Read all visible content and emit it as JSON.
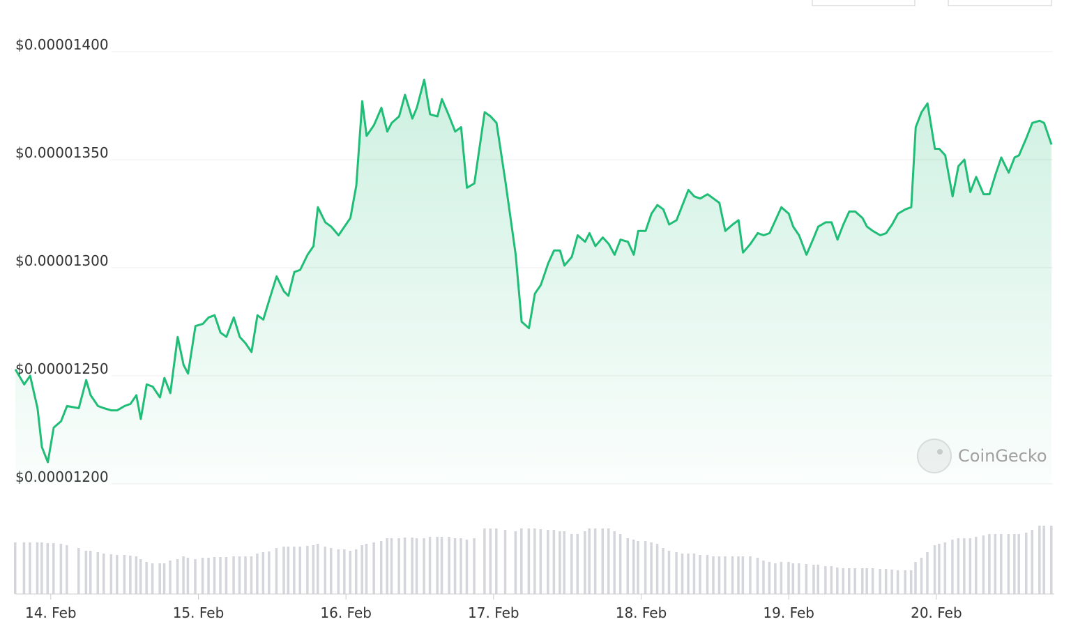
{
  "chart_data": {
    "type": "line",
    "color": "#20bd77",
    "volume_color": "#d4d6dc",
    "grid": true,
    "watermark": "CoinGecko",
    "x": [
      13.76,
      13.82,
      13.86,
      13.91,
      13.94,
      13.98,
      14.02,
      14.07,
      14.11,
      14.19,
      14.24,
      14.27,
      14.32,
      14.36,
      14.41,
      14.45,
      14.5,
      14.54,
      14.58,
      14.61,
      14.65,
      14.69,
      14.74,
      14.77,
      14.81,
      14.86,
      14.9,
      14.93,
      14.98,
      15.03,
      15.07,
      15.11,
      15.15,
      15.19,
      15.24,
      15.28,
      15.32,
      15.36,
      15.4,
      15.44,
      15.48,
      15.53,
      15.58,
      15.61,
      15.65,
      15.69,
      15.74,
      15.78,
      15.81,
      15.86,
      15.9,
      15.95,
      15.99,
      16.03,
      16.07,
      16.11,
      16.14,
      16.19,
      16.24,
      16.28,
      16.31,
      16.36,
      16.4,
      16.45,
      16.48,
      16.53,
      16.57,
      16.62,
      16.65,
      16.7,
      16.74,
      16.78,
      16.82,
      16.87,
      16.94,
      16.98,
      17.02,
      17.08,
      17.15,
      17.19,
      17.24,
      17.28,
      17.32,
      17.37,
      17.41,
      17.45,
      17.48,
      17.53,
      17.57,
      17.62,
      17.65,
      17.69,
      17.74,
      17.78,
      17.82,
      17.86,
      17.91,
      17.95,
      17.98,
      18.03,
      18.07,
      18.11,
      18.15,
      18.19,
      18.24,
      18.28,
      18.32,
      18.36,
      18.4,
      18.45,
      18.49,
      18.53,
      18.57,
      18.62,
      18.66,
      18.69,
      18.74,
      18.79,
      18.83,
      18.87,
      18.91,
      18.95,
      19,
      19.03,
      19.07,
      19.12,
      19.17,
      19.2,
      19.25,
      19.29,
      19.33,
      19.37,
      19.41,
      19.45,
      19.5,
      19.53,
      19.57,
      19.62,
      19.66,
      19.7,
      19.74,
      19.79,
      19.83,
      19.86,
      19.9,
      19.94,
      19.99,
      20.02,
      20.06,
      20.11,
      20.15,
      20.19,
      20.23,
      20.27,
      20.32,
      20.36,
      20.4,
      20.44,
      20.49,
      20.53,
      20.56,
      20.61,
      20.65,
      20.7,
      20.73,
      20.78
    ],
    "values": [
      1.253e-05,
      1.246e-05,
      1.25e-05,
      1.235e-05,
      1.217e-05,
      1.21e-05,
      1.226e-05,
      1.229e-05,
      1.236e-05,
      1.235e-05,
      1.248e-05,
      1.241e-05,
      1.236e-05,
      1.235e-05,
      1.234e-05,
      1.234e-05,
      1.236e-05,
      1.237e-05,
      1.241e-05,
      1.23e-05,
      1.246e-05,
      1.245e-05,
      1.24e-05,
      1.249e-05,
      1.242e-05,
      1.268e-05,
      1.255e-05,
      1.251e-05,
      1.273e-05,
      1.274e-05,
      1.277e-05,
      1.278e-05,
      1.27e-05,
      1.268e-05,
      1.277e-05,
      1.268e-05,
      1.265e-05,
      1.261e-05,
      1.278e-05,
      1.276e-05,
      1.285e-05,
      1.296e-05,
      1.289e-05,
      1.287e-05,
      1.298e-05,
      1.299e-05,
      1.306e-05,
      1.31e-05,
      1.328e-05,
      1.321e-05,
      1.319e-05,
      1.315e-05,
      1.319e-05,
      1.323e-05,
      1.338e-05,
      1.377e-05,
      1.361e-05,
      1.366e-05,
      1.374e-05,
      1.363e-05,
      1.367e-05,
      1.37e-05,
      1.38e-05,
      1.369e-05,
      1.374e-05,
      1.387e-05,
      1.371e-05,
      1.37e-05,
      1.378e-05,
      1.37e-05,
      1.363e-05,
      1.365e-05,
      1.337e-05,
      1.339e-05,
      1.372e-05,
      1.37e-05,
      1.367e-05,
      1.34e-05,
      1.306e-05,
      1.275e-05,
      1.272e-05,
      1.288e-05,
      1.292e-05,
      1.302e-05,
      1.308e-05,
      1.308e-05,
      1.301e-05,
      1.305e-05,
      1.315e-05,
      1.312e-05,
      1.316e-05,
      1.31e-05,
      1.314e-05,
      1.311e-05,
      1.306e-05,
      1.313e-05,
      1.312e-05,
      1.306e-05,
      1.317e-05,
      1.317e-05,
      1.325e-05,
      1.329e-05,
      1.327e-05,
      1.32e-05,
      1.322e-05,
      1.329e-05,
      1.336e-05,
      1.333e-05,
      1.332e-05,
      1.334e-05,
      1.332e-05,
      1.33e-05,
      1.317e-05,
      1.32e-05,
      1.322e-05,
      1.307e-05,
      1.311e-05,
      1.316e-05,
      1.315e-05,
      1.316e-05,
      1.322e-05,
      1.328e-05,
      1.325e-05,
      1.319e-05,
      1.315e-05,
      1.306e-05,
      1.314e-05,
      1.319e-05,
      1.321e-05,
      1.321e-05,
      1.313e-05,
      1.32e-05,
      1.326e-05,
      1.326e-05,
      1.323e-05,
      1.319e-05,
      1.317e-05,
      1.315e-05,
      1.316e-05,
      1.32e-05,
      1.325e-05,
      1.327e-05,
      1.328e-05,
      1.365e-05,
      1.372e-05,
      1.376e-05,
      1.355e-05,
      1.355e-05,
      1.352e-05,
      1.333e-05,
      1.347e-05,
      1.35e-05,
      1.335e-05,
      1.342e-05,
      1.334e-05,
      1.334e-05,
      1.343e-05,
      1.351e-05,
      1.344e-05,
      1.351e-05,
      1.352e-05,
      1.36e-05,
      1.367e-05,
      1.368e-05,
      1.367e-05,
      1.357e-05
    ],
    "volume": [
      74,
      74,
      74,
      74,
      74,
      73,
      73,
      72,
      70,
      66,
      62,
      62,
      60,
      58,
      57,
      56,
      56,
      55,
      54,
      50,
      46,
      44,
      44,
      44,
      48,
      50,
      54,
      52,
      50,
      52,
      52,
      53,
      53,
      53,
      54,
      54,
      54,
      54,
      58,
      60,
      61,
      66,
      68,
      68,
      68,
      68,
      69,
      70,
      72,
      68,
      66,
      64,
      64,
      62,
      64,
      70,
      72,
      74,
      76,
      80,
      80,
      80,
      81,
      81,
      80,
      80,
      82,
      82,
      82,
      82,
      80,
      80,
      78,
      80,
      94,
      94,
      94,
      92,
      90,
      94,
      94,
      94,
      93,
      92,
      92,
      90,
      90,
      86,
      86,
      90,
      94,
      94,
      94,
      94,
      90,
      86,
      80,
      78,
      76,
      76,
      74,
      72,
      66,
      62,
      60,
      58,
      58,
      58,
      56,
      56,
      54,
      54,
      54,
      54,
      54,
      54,
      54,
      52,
      48,
      46,
      44,
      46,
      46,
      44,
      44,
      43,
      42,
      42,
      40,
      40,
      38,
      37,
      37,
      37,
      37,
      37,
      37,
      36,
      36,
      35,
      34,
      34,
      34,
      46,
      52,
      60,
      70,
      72,
      74,
      78,
      80,
      80,
      80,
      82,
      84,
      86,
      86,
      86,
      86,
      86,
      86,
      88,
      92,
      98,
      98,
      98
    ],
    "xlim": [
      13.76,
      20.78
    ],
    "xticks": [
      {
        "value": 14,
        "label": "14. Feb"
      },
      {
        "value": 15,
        "label": "15. Feb"
      },
      {
        "value": 16,
        "label": "16. Feb"
      },
      {
        "value": 17,
        "label": "17. Feb"
      },
      {
        "value": 18,
        "label": "18. Feb"
      },
      {
        "value": 19,
        "label": "19. Feb"
      },
      {
        "value": 20,
        "label": "20. Feb"
      }
    ],
    "ylim": [
      1.2e-05,
      1.4e-05
    ],
    "yticks": [
      {
        "value": 1.2e-05,
        "label": "$0.00001200"
      },
      {
        "value": 1.25e-05,
        "label": "$0.00001250"
      },
      {
        "value": 1.3e-05,
        "label": "$0.00001300"
      },
      {
        "value": 1.35e-05,
        "label": "$0.00001350"
      },
      {
        "value": 1.4e-05,
        "label": "$0.00001400"
      }
    ],
    "y2lim": [
      0,
      100
    ]
  }
}
